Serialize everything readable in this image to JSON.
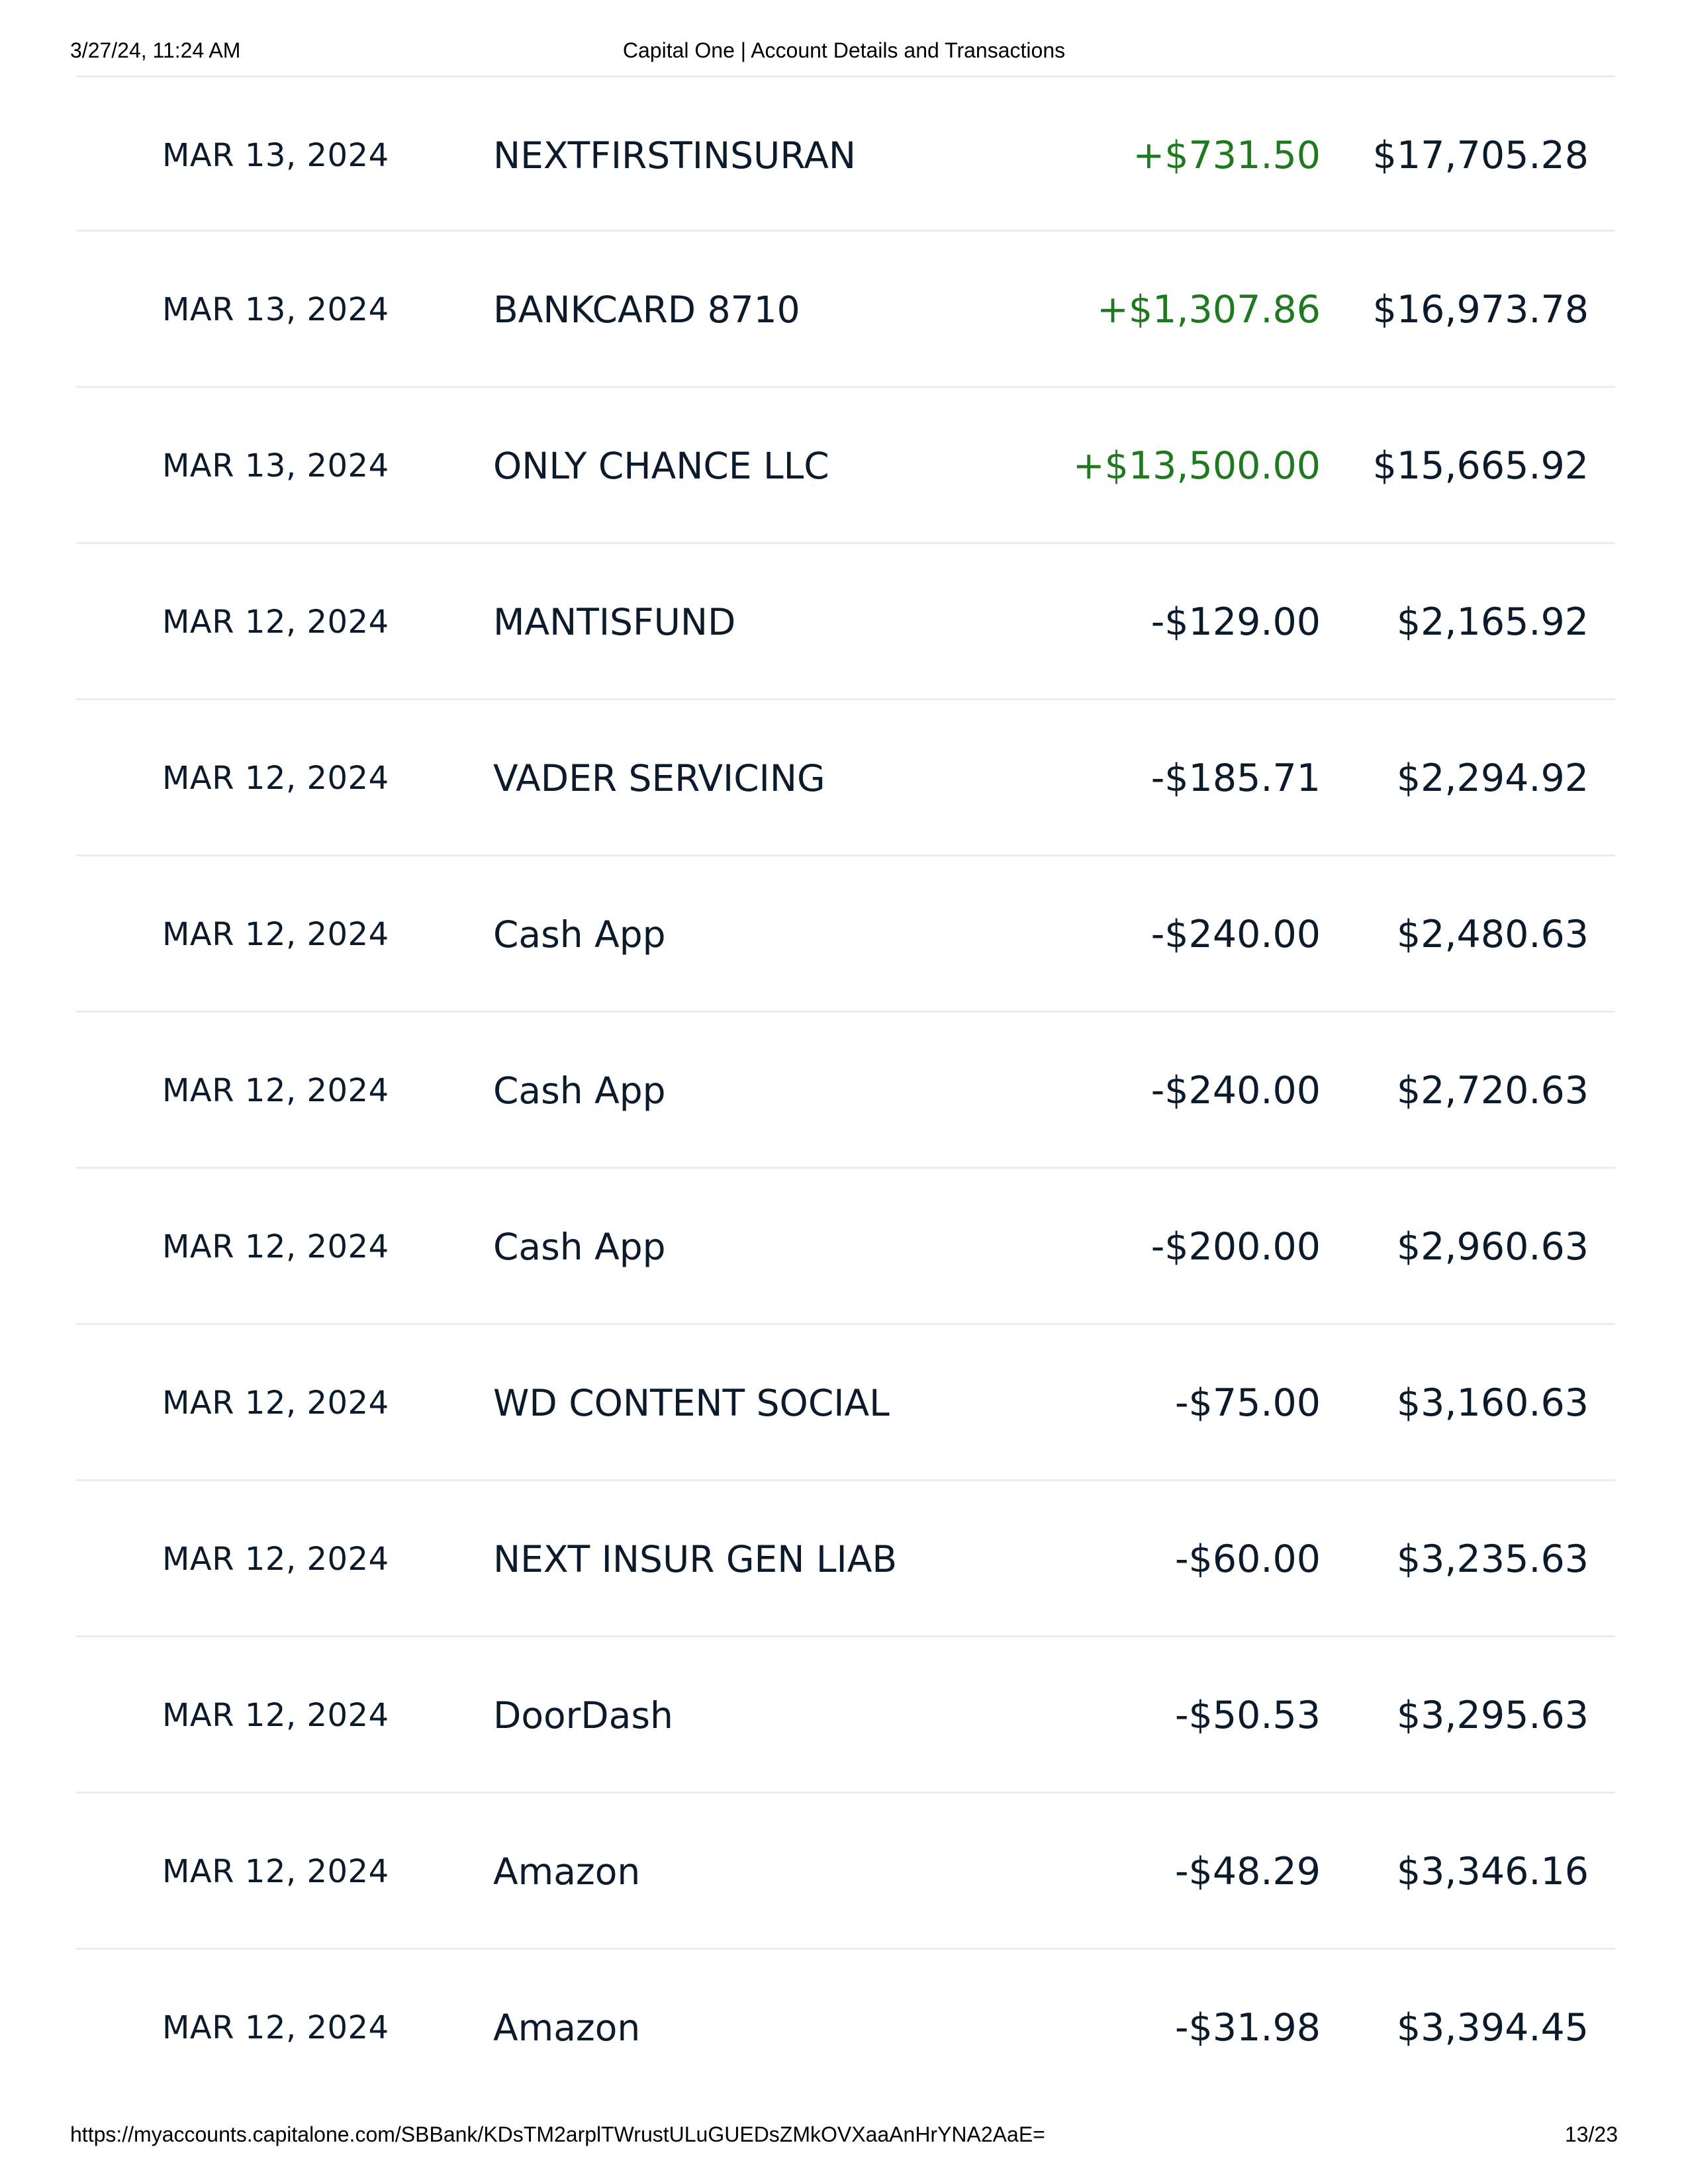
{
  "print_header": {
    "datetime": "3/27/24, 11:24 AM",
    "title": "Capital One | Account Details and Transactions"
  },
  "print_footer": {
    "url": "https://myaccounts.capitalone.com/SBBank/KDsTM2arplTWrustULuGUEDsZMkOVXaaAnHrYNA2AaE=",
    "page": "13/23"
  },
  "colors": {
    "credit": "#1f7a1f",
    "text": "#0b1b2b",
    "divider": "#ececec"
  },
  "transactions": [
    {
      "date": "MAR 13, 2024",
      "description": "NEXTFIRSTINSURAN",
      "amount": "+$731.50",
      "balance": "$17,705.28",
      "type": "credit"
    },
    {
      "date": "MAR 13, 2024",
      "description": "BANKCARD 8710",
      "amount": "+$1,307.86",
      "balance": "$16,973.78",
      "type": "credit"
    },
    {
      "date": "MAR 13, 2024",
      "description": "ONLY CHANCE LLC",
      "amount": "+$13,500.00",
      "balance": "$15,665.92",
      "type": "credit"
    },
    {
      "date": "MAR 12, 2024",
      "description": "MANTISFUND",
      "amount": "-$129.00",
      "balance": "$2,165.92",
      "type": "debit"
    },
    {
      "date": "MAR 12, 2024",
      "description": "VADER SERVICING",
      "amount": "-$185.71",
      "balance": "$2,294.92",
      "type": "debit"
    },
    {
      "date": "MAR 12, 2024",
      "description": "Cash App",
      "amount": "-$240.00",
      "balance": "$2,480.63",
      "type": "debit"
    },
    {
      "date": "MAR 12, 2024",
      "description": "Cash App",
      "amount": "-$240.00",
      "balance": "$2,720.63",
      "type": "debit"
    },
    {
      "date": "MAR 12, 2024",
      "description": "Cash App",
      "amount": "-$200.00",
      "balance": "$2,960.63",
      "type": "debit"
    },
    {
      "date": "MAR 12, 2024",
      "description": "WD CONTENT SOCIAL",
      "amount": "-$75.00",
      "balance": "$3,160.63",
      "type": "debit"
    },
    {
      "date": "MAR 12, 2024",
      "description": "NEXT INSUR GEN LIAB",
      "amount": "-$60.00",
      "balance": "$3,235.63",
      "type": "debit"
    },
    {
      "date": "MAR 12, 2024",
      "description": "DoorDash",
      "amount": "-$50.53",
      "balance": "$3,295.63",
      "type": "debit"
    },
    {
      "date": "MAR 12, 2024",
      "description": "Amazon",
      "amount": "-$48.29",
      "balance": "$3,346.16",
      "type": "debit"
    },
    {
      "date": "MAR 12, 2024",
      "description": "Amazon",
      "amount": "-$31.98",
      "balance": "$3,394.45",
      "type": "debit"
    }
  ]
}
